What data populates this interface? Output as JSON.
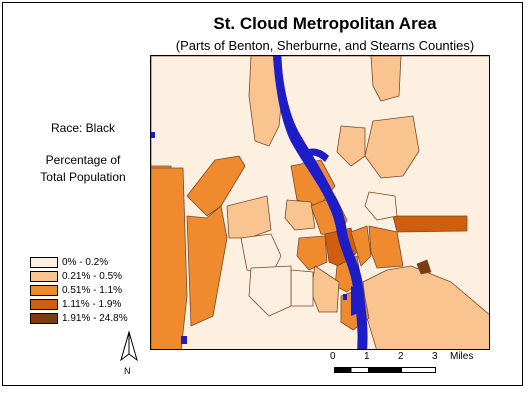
{
  "title": "St. Cloud Metropolitan Area",
  "subtitle": "(Parts of Benton, Sherburne, and Stearns Counties)",
  "legend": {
    "race_label": "Race: Black",
    "measure_line1": "Percentage of",
    "measure_line2": "Total Population",
    "classes": [
      {
        "label": "0% - 0.2%",
        "color": "#fdf0e0"
      },
      {
        "label": "0.21% - 0.5%",
        "color": "#f9c48f"
      },
      {
        "label": "0.51% - 1.1%",
        "color": "#ef8a2e"
      },
      {
        "label": "1.11% - 1.9%",
        "color": "#cf5f0e"
      },
      {
        "label": "1.91% - 24.8%",
        "color": "#7a3d10"
      }
    ]
  },
  "north_arrow": {
    "label": "N"
  },
  "scale": {
    "ticks": [
      "0",
      "1",
      "2",
      "3"
    ],
    "unit": "Miles"
  },
  "colors": {
    "water": "#1c1cc8",
    "outline": "#7a4a2a"
  }
}
